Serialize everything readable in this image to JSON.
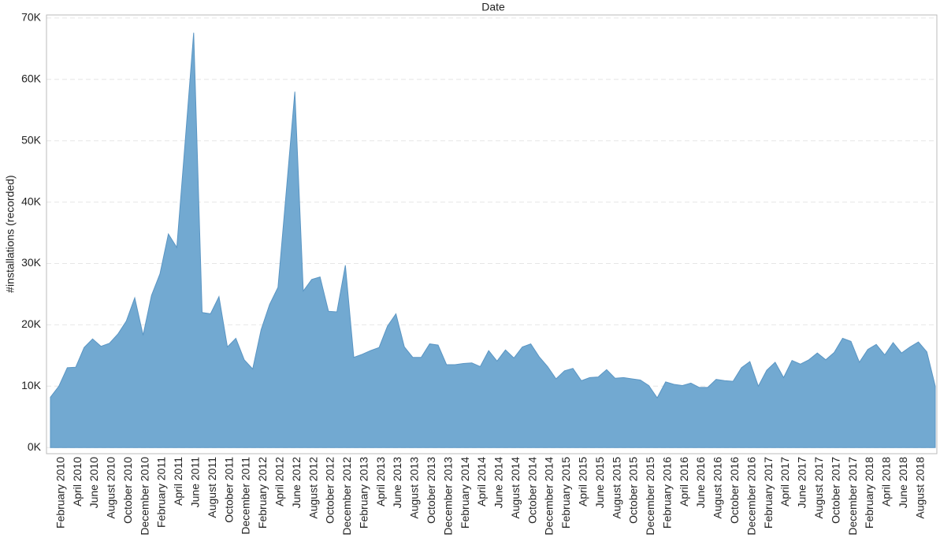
{
  "chart_data": {
    "type": "area",
    "x_title": "Date",
    "y_title": "#installations (recorded)",
    "color": "#72a9d1",
    "line_color": "#5a95c3",
    "grid": true,
    "categories": [
      null,
      "February 2010",
      null,
      "April 2010",
      null,
      "June 2010",
      null,
      "August 2010",
      null,
      "October 2010",
      null,
      "December 2010",
      null,
      "February 2011",
      null,
      "April 2011",
      null,
      "June 2011",
      null,
      "August 2011",
      null,
      "October 2011",
      null,
      "December 2011",
      null,
      "February 2012",
      null,
      "April 2012",
      null,
      "June 2012",
      null,
      "August 2012",
      null,
      "October 2012",
      null,
      "December 2012",
      null,
      "February 2013",
      null,
      "April 2013",
      null,
      "June 2013",
      null,
      "August 2013",
      null,
      "October 2013",
      null,
      "December 2013",
      null,
      "February 2014",
      null,
      "April 2014",
      null,
      "June 2014",
      null,
      "August 2014",
      null,
      "October 2014",
      null,
      "December 2014",
      null,
      "February 2015",
      null,
      "April 2015",
      null,
      "June 2015",
      null,
      "August 2015",
      null,
      "October 2015",
      null,
      "December 2015",
      null,
      "February 2016",
      null,
      "April 2016",
      null,
      "June 2016",
      null,
      "August 2016",
      null,
      "October 2016",
      null,
      "December 2016",
      null,
      "February 2017",
      null,
      "April 2017",
      null,
      "June 2017",
      null,
      "August 2017",
      null,
      "October 2017",
      null,
      "December 2017",
      null,
      "February 2018",
      null,
      "April 2018",
      null,
      "June 2018",
      null,
      "August 2018",
      null,
      null
    ],
    "values": [
      8200,
      10000,
      13000,
      13100,
      16300,
      17700,
      16500,
      17000,
      18500,
      20600,
      24400,
      18300,
      24800,
      28300,
      34800,
      32600,
      50000,
      67600,
      22000,
      21800,
      24600,
      16400,
      17800,
      14300,
      12800,
      19200,
      23300,
      26100,
      42000,
      58000,
      25500,
      27400,
      27800,
      22200,
      22100,
      29700,
      14700,
      15200,
      15800,
      16300,
      19800,
      21800,
      16400,
      14700,
      14700,
      16900,
      16700,
      13500,
      13500,
      13700,
      13800,
      13200,
      15800,
      14100,
      15900,
      14600,
      16400,
      16900,
      14800,
      13200,
      11200,
      12500,
      12900,
      10900,
      11400,
      11500,
      12700,
      11300,
      11400,
      11200,
      11000,
      10100,
      8100,
      10700,
      10300,
      10100,
      10500,
      9800,
      9800,
      11100,
      10900,
      10800,
      13000,
      14000,
      10000,
      12600,
      13900,
      11400,
      14200,
      13600,
      14300,
      15400,
      14300,
      15500,
      17800,
      17300,
      13900,
      16000,
      16800,
      15100,
      17100,
      15400,
      16400,
      17200,
      15600,
      10000
    ],
    "ylim": [
      -1000,
      70500
    ],
    "yticks": [
      {
        "value": 0,
        "label": "0K"
      },
      {
        "value": 10000,
        "label": "10K"
      },
      {
        "value": 20000,
        "label": "20K"
      },
      {
        "value": 30000,
        "label": "30K"
      },
      {
        "value": 40000,
        "label": "40K"
      },
      {
        "value": 50000,
        "label": "50K"
      },
      {
        "value": 60000,
        "label": "60K"
      },
      {
        "value": 70000,
        "label": "70K"
      }
    ]
  }
}
